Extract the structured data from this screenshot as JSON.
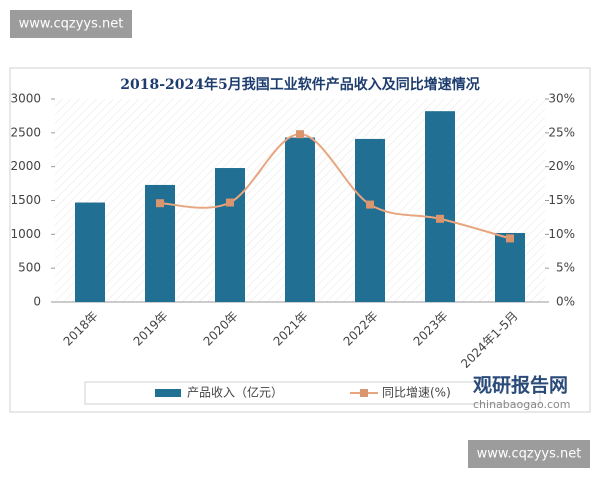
{
  "chart_data": {
    "type": "bar-line",
    "title": "2018-2024年5月我国工业软件产品收入及同比增速情况",
    "categories": [
      "2018年",
      "2019年",
      "2020年",
      "2021年",
      "2022年",
      "2023年",
      "2024年1-5月"
    ],
    "series": [
      {
        "name": "产品收入（亿元）",
        "type": "bar",
        "color": "#216f93",
        "values": [
          1470,
          1730,
          1980,
          2430,
          2410,
          2820,
          1020
        ]
      },
      {
        "name": "同比增速(%)",
        "type": "line",
        "axis": "y2",
        "color": "#e8a57e",
        "values": [
          null,
          14.6,
          14.7,
          24.8,
          14.4,
          12.3,
          9.4
        ]
      }
    ],
    "ylim": [
      0,
      3000
    ],
    "yticks": [
      0,
      500,
      1000,
      1500,
      2000,
      2500,
      3000
    ],
    "y2lim": [
      0,
      30
    ],
    "y2ticks": [
      {
        "value": 0,
        "label": "0%"
      },
      {
        "value": 5,
        "label": "5%"
      },
      {
        "value": 10,
        "label": "10%"
      },
      {
        "value": 15,
        "label": "15%"
      },
      {
        "value": 20,
        "label": "20%"
      },
      {
        "value": 25,
        "label": "25%"
      },
      {
        "value": 30,
        "label": "30%"
      }
    ],
    "legend": "bottom"
  },
  "watermarks": [
    "www.cqzyys.net",
    "www.cqzyys.net"
  ],
  "logo": {
    "name": "观研报告网",
    "url": "chinabaogao.com"
  }
}
